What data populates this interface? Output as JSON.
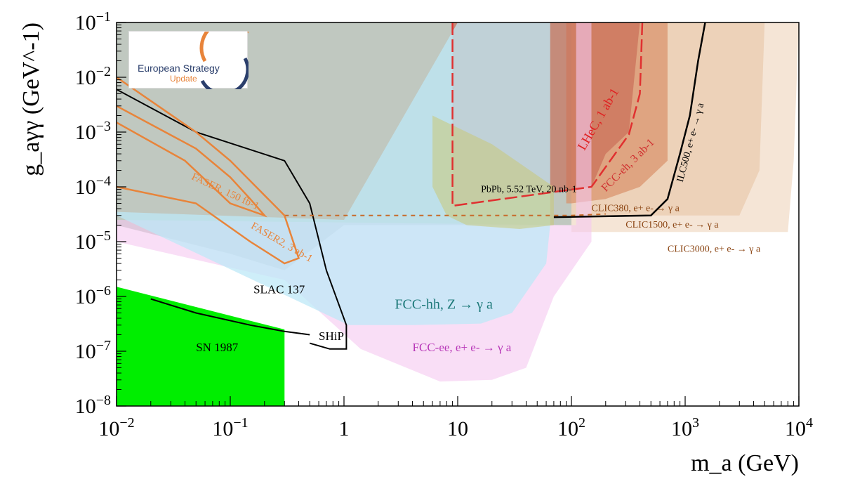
{
  "logo": {
    "line1": "European Strategy",
    "line2": "Update"
  },
  "chart_data": {
    "type": "area",
    "xlabel": "m_a (GeV)",
    "ylabel": "g_aγγ (GeV^-1)",
    "x_scale": "log",
    "y_scale": "log",
    "xlim": [
      0.01,
      10000
    ],
    "ylim": [
      1e-08,
      0.1
    ],
    "x_ticks": [
      {
        "label": "10^-2",
        "value": 0.01
      },
      {
        "label": "10^-1",
        "value": 0.1
      },
      {
        "label": "1",
        "value": 1
      },
      {
        "label": "10",
        "value": 10
      },
      {
        "label": "10^2",
        "value": 100
      },
      {
        "label": "10^3",
        "value": 1000
      },
      {
        "label": "10^4",
        "value": 10000
      }
    ],
    "y_ticks": [
      {
        "label": "10^-1",
        "value": 0.1
      },
      {
        "label": "10^-2",
        "value": 0.01
      },
      {
        "label": "10^-3",
        "value": 0.001
      },
      {
        "label": "10^-4",
        "value": 0.0001
      },
      {
        "label": "10^-5",
        "value": 1e-05
      },
      {
        "label": "10^-6",
        "value": 1e-06
      },
      {
        "label": "10^-7",
        "value": 1e-07
      },
      {
        "label": "10^-8",
        "value": 1e-08
      }
    ],
    "grid": false,
    "regions": [
      {
        "name": "existing-bounds",
        "color": "#8c9a8c",
        "opacity": 0.55,
        "points": [
          [
            0.01,
            0.1
          ],
          [
            100,
            0.1
          ],
          [
            100,
            2e-05
          ],
          [
            1,
            2e-05
          ],
          [
            0.3,
            3e-06
          ],
          [
            0.1,
            6e-06
          ],
          [
            0.01,
            2e-05
          ]
        ]
      },
      {
        "name": "CLIC3000",
        "color": "#f2dcc8",
        "opacity": 0.75,
        "points": [
          [
            0.4,
            1.5e-05
          ],
          [
            8000,
            1.5e-05
          ],
          [
            9000,
            0.0003
          ],
          [
            10000,
            0.1
          ],
          [
            1000,
            0.1
          ],
          [
            100,
            0.1
          ],
          [
            100,
            1.5e-05
          ]
        ]
      },
      {
        "name": "CLIC1500",
        "color": "#e8c5a5",
        "opacity": 0.6,
        "points": [
          [
            0.4,
            3e-05
          ],
          [
            3000,
            3e-05
          ],
          [
            4500,
            0.0002
          ],
          [
            5000,
            0.1
          ],
          [
            100,
            0.1
          ],
          [
            100,
            3e-05
          ]
        ]
      },
      {
        "name": "FCC-eh",
        "color": "#d8906a",
        "opacity": 0.7,
        "points": [
          [
            90,
            0.1
          ],
          [
            700,
            0.1
          ],
          [
            700,
            0.0003
          ],
          [
            400,
            0.0001
          ],
          [
            200,
            6e-05
          ],
          [
            100,
            5e-05
          ],
          [
            90,
            5e-05
          ]
        ]
      },
      {
        "name": "LHeC",
        "color": "#c86a55",
        "opacity": 0.65,
        "points": [
          [
            9,
            0.1
          ],
          [
            400,
            0.1
          ],
          [
            320,
            0.001
          ],
          [
            200,
            0.0004
          ],
          [
            150,
            0.0001
          ],
          [
            9,
            4.5e-05
          ]
        ]
      },
      {
        "name": "FCC-ee",
        "color": "#f5c8f0",
        "opacity": 0.6,
        "points": [
          [
            0.01,
            1e-05
          ],
          [
            0.3,
            2e-06
          ],
          [
            1.4,
            1.1e-07
          ],
          [
            7,
            2.8e-08
          ],
          [
            20,
            3e-08
          ],
          [
            40,
            5e-08
          ],
          [
            70,
            1e-06
          ],
          [
            150,
            1e-05
          ],
          [
            150,
            0.1
          ],
          [
            110,
            0.1
          ],
          [
            110,
            2e-05
          ],
          [
            0.01,
            2.5e-05
          ]
        ]
      },
      {
        "name": "FCC-hh",
        "color": "#bde8f7",
        "opacity": 0.75,
        "points": [
          [
            0.01,
            3e-05
          ],
          [
            1.1,
            3e-07
          ],
          [
            4,
            3e-07
          ],
          [
            16,
            3.2e-07
          ],
          [
            30,
            5e-07
          ],
          [
            60,
            4e-06
          ],
          [
            65,
            2e-05
          ],
          [
            65,
            0.1
          ],
          [
            10,
            0.1
          ],
          [
            1,
            2.5e-05
          ],
          [
            0.01,
            3.5e-05
          ]
        ]
      },
      {
        "name": "PbPb",
        "color": "#c8c878",
        "opacity": 0.55,
        "points": [
          [
            6,
            0.002
          ],
          [
            20,
            0.0006
          ],
          [
            70,
            0.0001
          ],
          [
            70,
            2e-05
          ],
          [
            35,
            1.7e-05
          ],
          [
            12,
            2e-05
          ],
          [
            8,
            3e-05
          ],
          [
            6,
            0.0001
          ]
        ]
      },
      {
        "name": "SN-1987",
        "color": "#00ee00",
        "opacity": 1,
        "points": [
          [
            0.01,
            1.5e-06
          ],
          [
            0.3,
            2.5e-07
          ],
          [
            0.3,
            1e-08
          ],
          [
            0.01,
            1e-08
          ]
        ]
      }
    ],
    "curves": [
      {
        "name": "SLAC 137",
        "color": "#000000",
        "width": 2,
        "dash": "",
        "points": [
          [
            0.02,
            9e-07
          ],
          [
            0.05,
            5e-07
          ],
          [
            0.15,
            3e-07
          ],
          [
            0.3,
            2.3e-07
          ],
          [
            0.5,
            2e-07
          ]
        ]
      },
      {
        "name": "SHiP",
        "color": "#000000",
        "width": 2,
        "dash": "",
        "points": [
          [
            0.01,
            0.006
          ],
          [
            0.05,
            0.001
          ],
          [
            0.3,
            0.0003
          ],
          [
            0.5,
            5e-05
          ],
          [
            0.7,
            3e-06
          ],
          [
            1.05,
            3e-07
          ],
          [
            1.05,
            1.1e-07
          ],
          [
            0.75,
            1.1e-07
          ],
          [
            0.5,
            1.4e-07
          ]
        ]
      },
      {
        "name": "ILC500",
        "color": "#000000",
        "width": 2.5,
        "dash": "",
        "points": [
          [
            70,
            2.8e-05
          ],
          [
            500,
            3e-05
          ],
          [
            700,
            6e-05
          ],
          [
            900,
            0.0004
          ],
          [
            1100,
            0.002
          ],
          [
            1300,
            0.02
          ],
          [
            1500,
            0.1
          ]
        ]
      },
      {
        "name": "CLIC380",
        "color": "#c76b2a",
        "width": 2,
        "dash": "6,6",
        "points": [
          [
            0.3,
            3e-05
          ],
          [
            100,
            3e-05
          ],
          [
            200,
            3.2e-05
          ]
        ]
      },
      {
        "name": "LHeC-edge",
        "color": "#e03030",
        "width": 2.5,
        "dash": "18,6",
        "points": [
          [
            9,
            0.1
          ],
          [
            9,
            4.5e-05
          ],
          [
            150,
            0.0001
          ],
          [
            320,
            0.0009
          ],
          [
            400,
            0.005
          ],
          [
            420,
            0.1
          ]
        ]
      },
      {
        "name": "FASER",
        "color": "#e8843a",
        "width": 2.5,
        "dash": "",
        "points": [
          [
            0.01,
            0.003
          ],
          [
            0.05,
            0.0005
          ],
          [
            0.1,
            0.00015
          ],
          [
            0.15,
            6e-05
          ],
          [
            0.2,
            3e-05
          ],
          [
            0.1,
            5e-05
          ],
          [
            0.04,
            0.0003
          ],
          [
            0.01,
            0.0015
          ]
        ]
      },
      {
        "name": "FASER2",
        "color": "#e8843a",
        "width": 2.5,
        "dash": "",
        "points": [
          [
            0.01,
            0.01
          ],
          [
            0.05,
            0.001
          ],
          [
            0.1,
            0.0003
          ],
          [
            0.3,
            3e-05
          ],
          [
            0.4,
            5e-06
          ],
          [
            0.3,
            4e-06
          ],
          [
            0.15,
            1e-05
          ],
          [
            0.05,
            5e-05
          ],
          [
            0.01,
            0.0001
          ]
        ]
      }
    ],
    "annotations": [
      {
        "text": "SLAC 137",
        "x": 0.16,
        "y": 1.15e-06,
        "color": "#000000",
        "size": 17,
        "rotate": 0
      },
      {
        "text": "SHiP",
        "x": 0.6,
        "y": 1.6e-07,
        "color": "#000000",
        "size": 17,
        "rotate": 0
      },
      {
        "text": "SN 1987",
        "x": 0.05,
        "y": 1e-07,
        "color": "#000000",
        "size": 17,
        "rotate": 0
      },
      {
        "text": "FCC-hh, Z → γ a",
        "x": 2.8,
        "y": 6e-07,
        "color": "#1e7a7a",
        "size": 20,
        "rotate": 0
      },
      {
        "text": "FCC-ee, e+ e- → γ a",
        "x": 4,
        "y": 1e-07,
        "color": "#b838b8",
        "size": 17,
        "rotate": 0
      },
      {
        "text": "PbPb, 5.52 TeV, 20 nb-1",
        "x": 16,
        "y": 8e-05,
        "color": "#000000",
        "size": 14,
        "rotate": 0
      },
      {
        "text": "CLIC380, e+ e- → γ a",
        "x": 150,
        "y": 3.6e-05,
        "color": "#8b4513",
        "size": 14,
        "rotate": 0
      },
      {
        "text": "CLIC1500, e+ e- → γ a",
        "x": 300,
        "y": 1.8e-05,
        "color": "#8b4513",
        "size": 14,
        "rotate": 0
      },
      {
        "text": "CLIC3000, e+ e- → γ a",
        "x": 700,
        "y": 6.5e-06,
        "color": "#8b4513",
        "size": 14,
        "rotate": 0
      },
      {
        "text": "LHeC, 1 ab-1",
        "x": 130,
        "y": 0.00045,
        "color": "#e02020",
        "size": 18,
        "rotate": -60
      },
      {
        "text": "FCC-eh, 3 ab-1",
        "x": 200,
        "y": 8e-05,
        "color": "#d03030",
        "size": 16,
        "rotate": -45
      },
      {
        "text": "ILC500, e+ e- → γ a",
        "x": 950,
        "y": 0.00012,
        "color": "#000000",
        "size": 14,
        "rotate": -75
      },
      {
        "text": "FASER, 150 fb-1",
        "x": 0.045,
        "y": 0.00014,
        "color": "#e8843a",
        "size": 15,
        "rotate": 25
      },
      {
        "text": "FASER2, 3 ab-1",
        "x": 0.15,
        "y": 1.8e-05,
        "color": "#e8843a",
        "size": 15,
        "rotate": 30
      }
    ]
  }
}
